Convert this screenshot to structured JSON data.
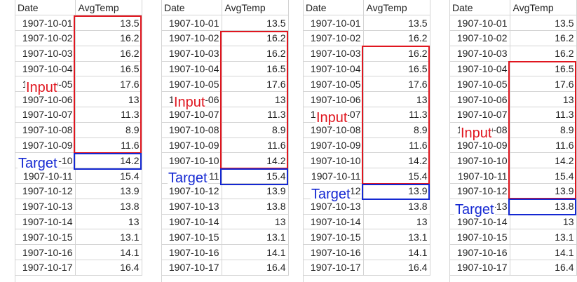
{
  "headers": {
    "date": "Date",
    "value": "AvgTemp"
  },
  "rows": [
    {
      "date": "1907-10-01",
      "value": "13.5"
    },
    {
      "date": "1907-10-02",
      "value": "16.2"
    },
    {
      "date": "1907-10-03",
      "value": "16.2"
    },
    {
      "date": "1907-10-04",
      "value": "16.5"
    },
    {
      "date": "1907-10-05",
      "value": "17.6"
    },
    {
      "date": "1907-10-06",
      "value": "13"
    },
    {
      "date": "1907-10-07",
      "value": "11.3"
    },
    {
      "date": "1907-10-08",
      "value": "8.9"
    },
    {
      "date": "1907-10-09",
      "value": "11.6"
    },
    {
      "date": "1907-10-10",
      "value": "14.2"
    },
    {
      "date": "1907-10-11",
      "value": "15.4"
    },
    {
      "date": "1907-10-12",
      "value": "13.9"
    },
    {
      "date": "1907-10-13",
      "value": "13.8"
    },
    {
      "date": "1907-10-14",
      "value": "13"
    },
    {
      "date": "1907-10-15",
      "value": "13.1"
    },
    {
      "date": "1907-10-16",
      "value": "14.1"
    },
    {
      "date": "1907-10-17",
      "value": "16.4"
    }
  ],
  "panels": [
    {
      "input_rows": [
        1,
        9
      ],
      "target_row": 10
    },
    {
      "input_rows": [
        2,
        10
      ],
      "target_row": 11
    },
    {
      "input_rows": [
        3,
        11
      ],
      "target_row": 12
    },
    {
      "input_rows": [
        4,
        12
      ],
      "target_row": 13
    }
  ],
  "annotations": {
    "input_label": "Input",
    "target_label": "Target",
    "input_color": "#e0161f",
    "target_color": "#1428d2"
  }
}
